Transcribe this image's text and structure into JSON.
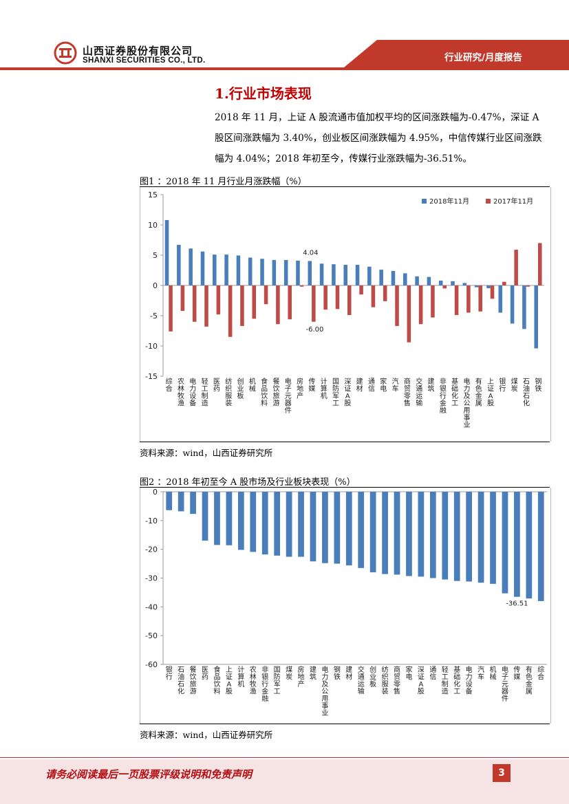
{
  "header": {
    "company_cn": "山西证券股份有限公司",
    "company_en": "SHANXI SECURITIES CO., LTD.",
    "report_type": "行业研究/月度报告"
  },
  "section": {
    "title": "1.行业市场表现",
    "paragraph_lines": [
      "2018 年 11 月，上证 A 股流通市值加权平均的区间涨跌幅为-0.47%，深证 A",
      "股区间涨跌幅为 3.40%，创业板区间涨跌幅为 4.95%，中信传媒行业区间涨跌",
      "幅为 4.04%；2018 年初至今，传媒行业涨跌幅为-36.51%。"
    ]
  },
  "figure1": {
    "title": "图1 ：2018 年 11 月行业月涨跌幅（%）",
    "source": "资料来源：wind，山西证券研究所"
  },
  "figure2": {
    "title": "图2 ：2018 年初至今 A 股市场及行业板块表现（%）",
    "source": "资料来源：wind，山西证券研究所"
  },
  "footer": {
    "disclaimer": "请务必阅读最后一页股票评级说明和免责声明",
    "page_number": "3"
  },
  "colors": {
    "brand_red": "#c0392b",
    "series_2018": "#4a7ebb",
    "series_2017": "#be4b48"
  },
  "chart_data": [
    {
      "type": "bar",
      "title": "2018 年 11 月行业月涨跌幅（%）",
      "categories": [
        "综合",
        "农林牧渔",
        "电力设备",
        "轻工制造",
        "医药",
        "纺织服装",
        "创业板",
        "机械",
        "食品饮料",
        "餐饮旅游",
        "电子元器件",
        "房地产",
        "传媒",
        "计算机",
        "国防军工",
        "深证A股",
        "建材",
        "通信",
        "家电",
        "汽车",
        "商贸零售",
        "交通运输",
        "建筑",
        "非银行金融",
        "基础化工",
        "电力及公用事业",
        "有色金属",
        "上证A股",
        "银行",
        "煤炭",
        "石油石化",
        "钢铁"
      ],
      "series": [
        {
          "name": "2018年11月",
          "values": [
            10.8,
            6.7,
            6.1,
            5.6,
            5.1,
            5.1,
            4.95,
            4.6,
            4.4,
            4.2,
            4.2,
            4.1,
            4.04,
            3.6,
            3.5,
            3.4,
            3.4,
            3.1,
            2.6,
            2.4,
            2.0,
            1.5,
            1.4,
            0.8,
            0.7,
            0.4,
            -0.3,
            -0.47,
            -4.5,
            -6.3,
            -7.2,
            -10.4
          ]
        },
        {
          "name": "2017年11月",
          "values": [
            -7.6,
            -4.2,
            -6.0,
            -6.8,
            -4.8,
            -8.5,
            -6.7,
            -5.5,
            -3.1,
            -6.4,
            -5.6,
            -0.2,
            -6.0,
            -4.0,
            -3.9,
            -4.9,
            -1.5,
            -3.6,
            -2.6,
            -6.7,
            -9.4,
            -6.4,
            -5.3,
            -0.5,
            -4.9,
            -4.5,
            -4.3,
            -2.2,
            0.6,
            5.9,
            -0.2,
            7.0
          ]
        }
      ],
      "ylim": [
        -15,
        15
      ],
      "yticks": [
        -15,
        -10,
        -5,
        0,
        5,
        10,
        15
      ],
      "annotations": [
        "4.04",
        "-6.00"
      ],
      "legend": "top-right",
      "grid": false
    },
    {
      "type": "bar",
      "title": "2018 年初至今 A 股市场及行业板块表现（%）",
      "categories": [
        "银行",
        "石油石化",
        "餐饮旅游",
        "医药",
        "食品饮料",
        "上证A股",
        "计算机",
        "农林牧渔",
        "非银行金融",
        "国防军工",
        "煤炭",
        "房地产",
        "建筑",
        "电力及公用事业",
        "钢铁",
        "建材",
        "交通运输",
        "创业板",
        "纺织服装",
        "商贸零售",
        "家电",
        "深证A股",
        "通信",
        "轻工制造",
        "基础化工",
        "电力设备",
        "汽车",
        "机械",
        "电子元器件",
        "传媒",
        "有色金属",
        "综合"
      ],
      "series": [
        {
          "name": "2018年初至今",
          "values": [
            -6.4,
            -6.8,
            -7.7,
            -17.0,
            -18.5,
            -18.6,
            -20.2,
            -20.9,
            -21.8,
            -22.2,
            -22.6,
            -22.6,
            -24.2,
            -24.8,
            -25.0,
            -25.6,
            -26.5,
            -28.0,
            -28.6,
            -28.8,
            -29.3,
            -29.5,
            -30.0,
            -30.5,
            -31.0,
            -31.2,
            -31.6,
            -32.0,
            -35.3,
            -36.51,
            -37.1,
            -38.0
          ]
        }
      ],
      "ylim": [
        -60,
        0
      ],
      "yticks": [
        -60,
        -50,
        -40,
        -30,
        -20,
        -10,
        0
      ],
      "annotations": [
        "-36.51"
      ],
      "grid": false
    }
  ]
}
